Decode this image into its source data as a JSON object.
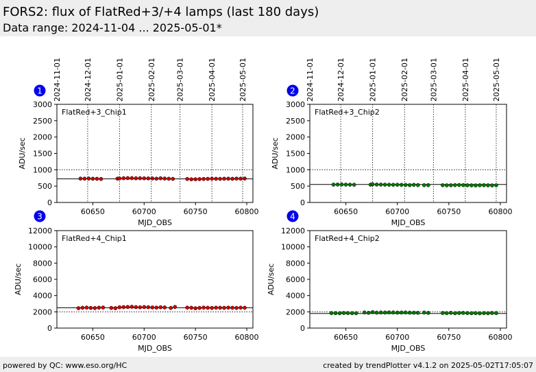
{
  "header": {
    "title": "FORS2: flux of FlatRed+3/+4 lamps (last 180 days)",
    "subtitle": "Data range: 2024-11-04 ... 2025-05-01*"
  },
  "footer": {
    "left": "powered by QC: www.eso.org/HC",
    "right": "created by trendPlotter v4.1.2 on 2025-05-02T17:05:07"
  },
  "colors": {
    "chip1_marker": "#cc0000",
    "chip2_marker": "#007700",
    "badge": "#0000ee",
    "header_bg": "#eeeeee"
  },
  "chart_data": [
    {
      "type": "scatter",
      "panel": "1",
      "label": "FlatRed+3_Chip1",
      "xlabel": "MJD_OBS",
      "ylabel": "ADU/sec",
      "xlim": [
        60615,
        60806
      ],
      "ylim": [
        0,
        3000
      ],
      "yticks": [
        0,
        500,
        1000,
        1500,
        2000,
        2500,
        3000
      ],
      "xticks": [
        60650,
        60700,
        60750,
        60800
      ],
      "date_ticks": [
        {
          "mjd": 60615,
          "label": "2024-11-01"
        },
        {
          "mjd": 60645,
          "label": "2024-12-01"
        },
        {
          "mjd": 60676,
          "label": "2025-01-01"
        },
        {
          "mjd": 60707,
          "label": "2025-02-01"
        },
        {
          "mjd": 60735,
          "label": "2025-03-01"
        },
        {
          "mjd": 60766,
          "label": "2025-04-01"
        },
        {
          "mjd": 60796,
          "label": "2025-05-01"
        }
      ],
      "reference_line": 720,
      "dotted_line": 1000,
      "x": [
        60638,
        60642,
        60646,
        60650,
        60654,
        60658,
        60674,
        60676,
        60680,
        60684,
        60688,
        60692,
        60696,
        60700,
        60704,
        60708,
        60712,
        60716,
        60720,
        60724,
        60728,
        60742,
        60746,
        60750,
        60754,
        60758,
        60762,
        60766,
        60770,
        60774,
        60778,
        60782,
        60786,
        60790,
        60794,
        60798
      ],
      "y": [
        730,
        728,
        732,
        726,
        724,
        718,
        728,
        735,
        742,
        745,
        744,
        740,
        742,
        738,
        736,
        734,
        728,
        740,
        732,
        726,
        722,
        718,
        708,
        710,
        714,
        718,
        722,
        726,
        724,
        722,
        726,
        728,
        724,
        730,
        728,
        732
      ]
    },
    {
      "type": "scatter",
      "panel": "2",
      "label": "FlatRed+3_Chip2",
      "xlabel": "MJD_OBS",
      "ylabel": "ADU/sec",
      "xlim": [
        60615,
        60806
      ],
      "ylim": [
        0,
        3000
      ],
      "yticks": [
        0,
        500,
        1000,
        1500,
        2000,
        2500,
        3000
      ],
      "xticks": [
        60650,
        60700,
        60750,
        60800
      ],
      "date_ticks": [
        {
          "mjd": 60615,
          "label": "2024-11-01"
        },
        {
          "mjd": 60645,
          "label": "2024-12-01"
        },
        {
          "mjd": 60676,
          "label": "2025-01-01"
        },
        {
          "mjd": 60707,
          "label": "2025-02-01"
        },
        {
          "mjd": 60735,
          "label": "2025-03-01"
        },
        {
          "mjd": 60766,
          "label": "2025-04-01"
        },
        {
          "mjd": 60796,
          "label": "2025-05-01"
        }
      ],
      "reference_line": 550,
      "dotted_line": 1000,
      "x": [
        60638,
        60642,
        60646,
        60650,
        60654,
        60658,
        60674,
        60676,
        60680,
        60684,
        60688,
        60692,
        60696,
        60700,
        60704,
        60708,
        60712,
        60716,
        60720,
        60726,
        60730,
        60744,
        60748,
        60752,
        60756,
        60760,
        60764,
        60768,
        60772,
        60776,
        60780,
        60784,
        60788,
        60792,
        60796
      ],
      "y": [
        545,
        548,
        550,
        546,
        544,
        542,
        545,
        555,
        548,
        546,
        544,
        542,
        540,
        542,
        538,
        536,
        530,
        538,
        532,
        528,
        530,
        528,
        524,
        526,
        530,
        534,
        530,
        526,
        524,
        522,
        526,
        528,
        524,
        522,
        526
      ]
    },
    {
      "type": "scatter",
      "panel": "3",
      "label": "FlatRed+4_Chip1",
      "xlabel": "MJD_OBS",
      "ylabel": "ADU/sec",
      "xlim": [
        60615,
        60806
      ],
      "ylim": [
        0,
        12000
      ],
      "yticks": [
        0,
        2000,
        4000,
        6000,
        8000,
        10000,
        12000
      ],
      "xticks": [
        60650,
        60700,
        60750,
        60800
      ],
      "reference_line": 2500,
      "dotted_line": 2000,
      "x": [
        60636,
        60640,
        60644,
        60648,
        60652,
        60656,
        60660,
        60668,
        60672,
        60676,
        60680,
        60684,
        60688,
        60692,
        60696,
        60700,
        60704,
        60708,
        60712,
        60716,
        60720,
        60726,
        60730,
        60742,
        60746,
        60750,
        60754,
        60758,
        60762,
        60766,
        60770,
        60774,
        60778,
        60782,
        60786,
        60790,
        60794,
        60798
      ],
      "y": [
        2450,
        2500,
        2520,
        2480,
        2460,
        2510,
        2530,
        2480,
        2450,
        2560,
        2580,
        2600,
        2620,
        2580,
        2560,
        2590,
        2570,
        2540,
        2520,
        2560,
        2540,
        2480,
        2600,
        2520,
        2500,
        2440,
        2480,
        2520,
        2500,
        2480,
        2510,
        2500,
        2490,
        2520,
        2500,
        2480,
        2510,
        2500
      ]
    },
    {
      "type": "scatter",
      "panel": "4",
      "label": "FlatRed+4_Chip2",
      "xlabel": "MJD_OBS",
      "ylabel": "ADU/sec",
      "xlim": [
        60615,
        60806
      ],
      "ylim": [
        0,
        12000
      ],
      "yticks": [
        0,
        2000,
        4000,
        6000,
        8000,
        10000,
        12000
      ],
      "xticks": [
        60650,
        60700,
        60750,
        60800
      ],
      "reference_line": 1800,
      "dotted_line": 2000,
      "x": [
        60636,
        60640,
        60644,
        60648,
        60652,
        60656,
        60660,
        60668,
        60672,
        60676,
        60680,
        60684,
        60688,
        60692,
        60696,
        60700,
        60704,
        60708,
        60712,
        60716,
        60720,
        60726,
        60730,
        60744,
        60748,
        60752,
        60756,
        60760,
        60764,
        60768,
        60772,
        60776,
        60780,
        60784,
        60788,
        60792,
        60796
      ],
      "y": [
        1850,
        1840,
        1830,
        1860,
        1850,
        1840,
        1830,
        1920,
        1880,
        1960,
        1900,
        1920,
        1910,
        1930,
        1920,
        1900,
        1910,
        1920,
        1900,
        1890,
        1880,
        1910,
        1870,
        1860,
        1840,
        1880,
        1830,
        1860,
        1870,
        1850,
        1830,
        1840,
        1820,
        1850,
        1830,
        1860,
        1850
      ]
    }
  ]
}
